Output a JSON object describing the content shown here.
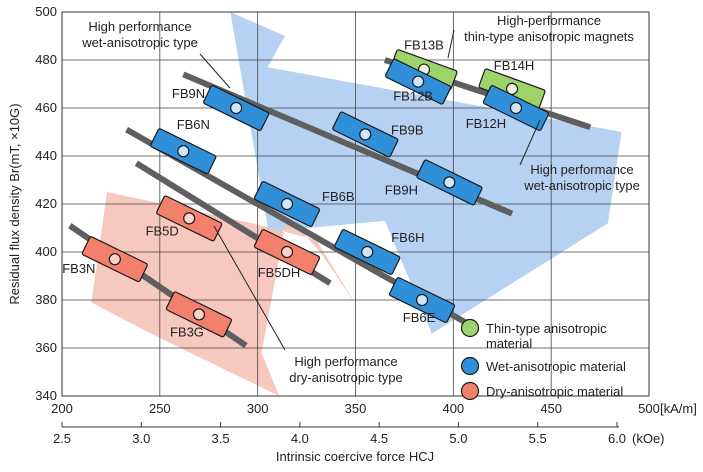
{
  "chart_data": {
    "type": "scatter",
    "xlabel": "Intrinsic coercive force HCJ",
    "x_unit": "[kA/m]",
    "x2_unit": "(kOe)",
    "ylabel": "Residual flux density Br(mT, ×10G)",
    "xlim": [
      200,
      500
    ],
    "ylim": [
      340,
      500
    ],
    "x_ticks": [
      200,
      250,
      300,
      350,
      400,
      450,
      500
    ],
    "x_tick_labels": [
      "200",
      "250",
      "300",
      "350",
      "400",
      "450",
      "500"
    ],
    "y_ticks": [
      340,
      360,
      380,
      400,
      420,
      440,
      460,
      480,
      500
    ],
    "y_tick_labels": [
      "340",
      "360",
      "380",
      "400",
      "420",
      "440",
      "460",
      "480",
      "500"
    ],
    "x2_ticks": [
      2.5,
      3.0,
      3.5,
      4.0,
      4.5,
      5.0,
      5.5,
      6.0
    ],
    "x2_tick_labels": [
      "2.5",
      "3.0",
      "3.5",
      "4.0",
      "4.5",
      "5.0",
      "5.5",
      "6.0"
    ],
    "grid": true,
    "legend_position": "bottom-right",
    "series": [
      {
        "name": "Thin-type anisotropic material",
        "color": "#9ed26b",
        "points": [
          {
            "label": "FB13B",
            "x": 385,
            "y": 476
          },
          {
            "label": "FB14H",
            "x": 430,
            "y": 468
          }
        ]
      },
      {
        "name": "Wet-anisotropic material",
        "color": "#2f8fd8",
        "points": [
          {
            "label": "FB9N",
            "x": 289,
            "y": 460
          },
          {
            "label": "FB6N",
            "x": 262,
            "y": 442
          },
          {
            "label": "FB12B",
            "x": 382,
            "y": 471
          },
          {
            "label": "FB12H",
            "x": 432,
            "y": 460
          },
          {
            "label": "FB9B",
            "x": 355,
            "y": 449
          },
          {
            "label": "FB9H",
            "x": 398,
            "y": 429
          },
          {
            "label": "FB6B",
            "x": 315,
            "y": 420
          },
          {
            "label": "FB6H",
            "x": 356,
            "y": 400
          },
          {
            "label": "FB6E",
            "x": 384,
            "y": 380
          }
        ]
      },
      {
        "name": "Dry-anisotropic material",
        "color": "#f2806c",
        "points": [
          {
            "label": "FB5D",
            "x": 265,
            "y": 414
          },
          {
            "label": "FB5DH",
            "x": 315,
            "y": 400
          },
          {
            "label": "FB3N",
            "x": 227,
            "y": 397
          },
          {
            "label": "FB3G",
            "x": 270,
            "y": 374
          }
        ]
      }
    ],
    "trend_lines": [
      {
        "x": [
          365,
          470
        ],
        "y": [
          480,
          452
        ]
      },
      {
        "x": [
          262,
          430
        ],
        "y": [
          474,
          416
        ]
      },
      {
        "x": [
          233,
          412
        ],
        "y": [
          451,
          368
        ]
      },
      {
        "x": [
          238,
          337
        ],
        "y": [
          437,
          387
        ]
      },
      {
        "x": [
          204,
          294
        ],
        "y": [
          411,
          361
        ]
      }
    ],
    "regions": [
      {
        "series": "Wet-anisotropic material",
        "x": [
          286,
          314,
          305,
          486,
          479,
          389,
          365,
          313,
          307
        ],
        "y": [
          500,
          490,
          477,
          450,
          412,
          366,
          413,
          409,
          402
        ]
      },
      {
        "series": "Dry-anisotropic material",
        "x": [
          223,
          297,
          330,
          351,
          332,
          315,
          302,
          311,
          243,
          215
        ],
        "y": [
          425,
          412,
          405,
          377,
          400,
          415,
          358,
          340,
          367,
          379
        ]
      }
    ],
    "annotations": [
      "High performance wet-anisotropic type",
      "High-performance thin-type anisotropic magnets",
      "High performance wet-anisotropic type",
      "High performance dry-anisotropic type"
    ]
  }
}
